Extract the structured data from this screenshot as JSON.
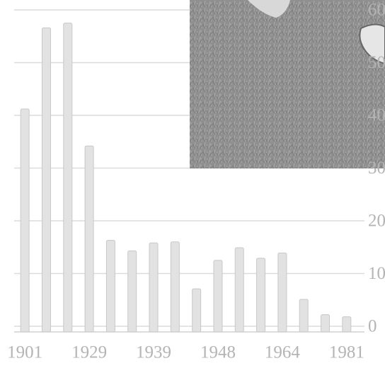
{
  "chart_data": {
    "type": "bar",
    "categories": [
      "1901",
      null,
      null,
      "1929",
      null,
      null,
      "1939",
      null,
      null,
      "1948",
      null,
      null,
      "1964",
      null,
      null,
      "1981"
    ],
    "values": [
      41.2,
      56.6,
      57.5,
      34.2,
      16.3,
      14.3,
      15.8,
      16,
      7.1,
      12.5,
      14.9,
      12.9,
      13.9,
      5.1,
      2.2,
      1.8
    ],
    "color": "#e2e2e2",
    "ylim": [
      0,
      60
    ],
    "yticks": [
      0,
      10,
      20,
      30,
      40,
      50,
      60
    ],
    "grid": true
  }
}
